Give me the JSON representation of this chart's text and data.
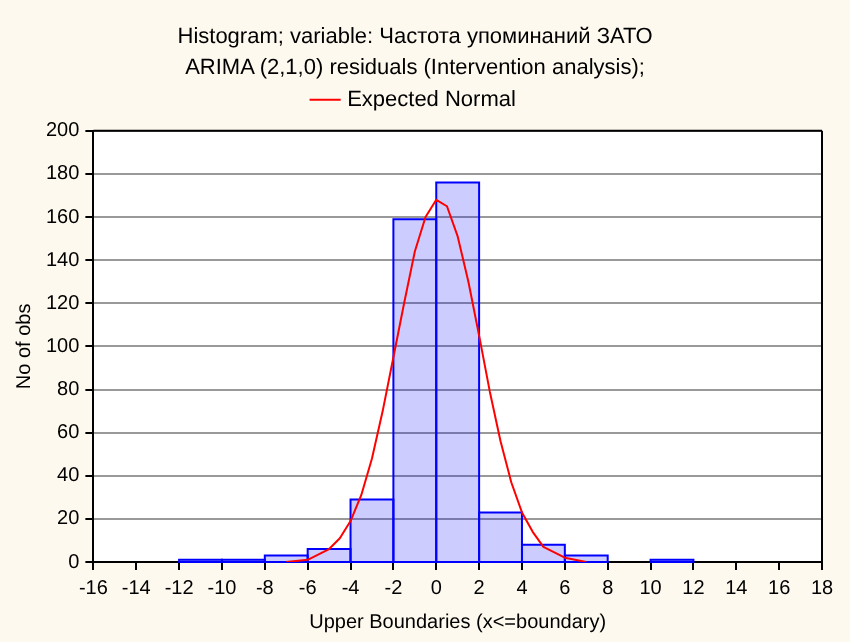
{
  "chart_data": {
    "type": "histogram",
    "title": "Histogram; variable: Частота упоминаний ЗАТО",
    "subtitle": "ARIMA (2,1,0) residuals (Intervention analysis);",
    "xlabel": "Upper Boundaries (x<=boundary)",
    "ylabel": "No of obs",
    "bins": [
      -12,
      -10,
      -8,
      -6,
      -4,
      -2,
      0,
      2,
      4,
      6,
      8,
      10,
      12
    ],
    "series": [
      {
        "type": "histogram",
        "color": "#0000ff",
        "values": [
          1,
          1,
          3,
          6,
          29,
          159,
          176,
          23,
          8,
          3,
          0,
          1
        ]
      },
      {
        "type": "line",
        "name": "Expected Normal",
        "color": "#ff0000",
        "x": [
          -7,
          -6,
          -5,
          -4.5,
          -4,
          -3.5,
          -3,
          -2.5,
          -2,
          -1.5,
          -1,
          -0.5,
          0,
          0.5,
          1,
          1.5,
          2,
          2.5,
          3,
          3.5,
          4,
          4.5,
          5,
          6,
          7
        ],
        "values": [
          0,
          1,
          6,
          11,
          19,
          31,
          48,
          70,
          95,
          120,
          144,
          160,
          168,
          165,
          151,
          130,
          105,
          79,
          56,
          37,
          23,
          14,
          7,
          2,
          0
        ]
      }
    ],
    "xlim": [
      -16,
      18
    ],
    "xticks": [
      -16,
      -14,
      -12,
      -10,
      -8,
      -6,
      -4,
      -2,
      0,
      2,
      4,
      6,
      8,
      10,
      12,
      14,
      16,
      18
    ],
    "ylim": [
      0,
      200
    ],
    "yticks": [
      0,
      20,
      40,
      60,
      80,
      100,
      120,
      140,
      160,
      180,
      200
    ],
    "grid": "y",
    "legend": "top",
    "marker": "none",
    "line_style": "solid"
  }
}
